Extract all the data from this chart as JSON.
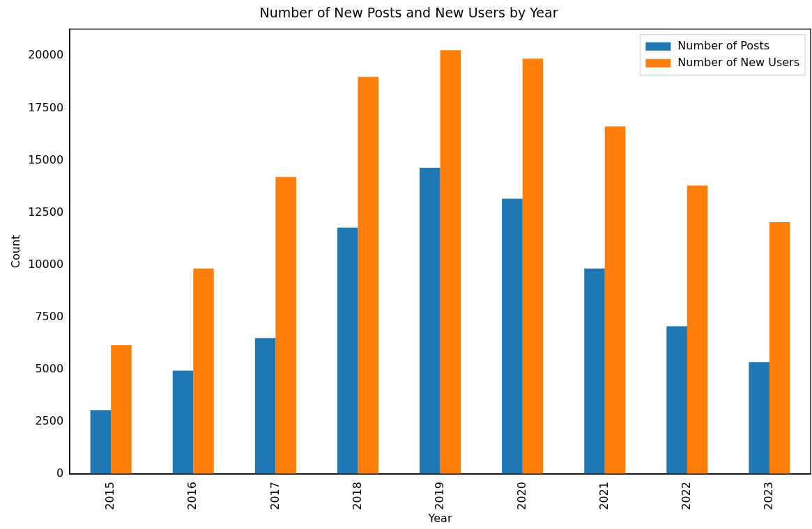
{
  "chart_data": {
    "type": "bar",
    "title": "Number of New Posts and New Users by Year",
    "xlabel": "Year",
    "ylabel": "Count",
    "categories": [
      "2015",
      "2016",
      "2017",
      "2018",
      "2019",
      "2020",
      "2021",
      "2022",
      "2023"
    ],
    "series": [
      {
        "name": "Number of Posts",
        "color": "#1f77b4",
        "values": [
          3060,
          4950,
          6500,
          11790,
          14650,
          13170,
          9830,
          7070,
          5350
        ]
      },
      {
        "name": "Number of New Users",
        "color": "#ff7f0e",
        "values": [
          6160,
          9830,
          14210,
          18990,
          20270,
          19870,
          16630,
          13800,
          12050
        ]
      }
    ],
    "ylim": [
      0,
      21280
    ],
    "yticks": [
      0,
      2500,
      5000,
      7500,
      10000,
      12500,
      15000,
      17500,
      20000
    ],
    "grid": false,
    "legend": "top right"
  }
}
